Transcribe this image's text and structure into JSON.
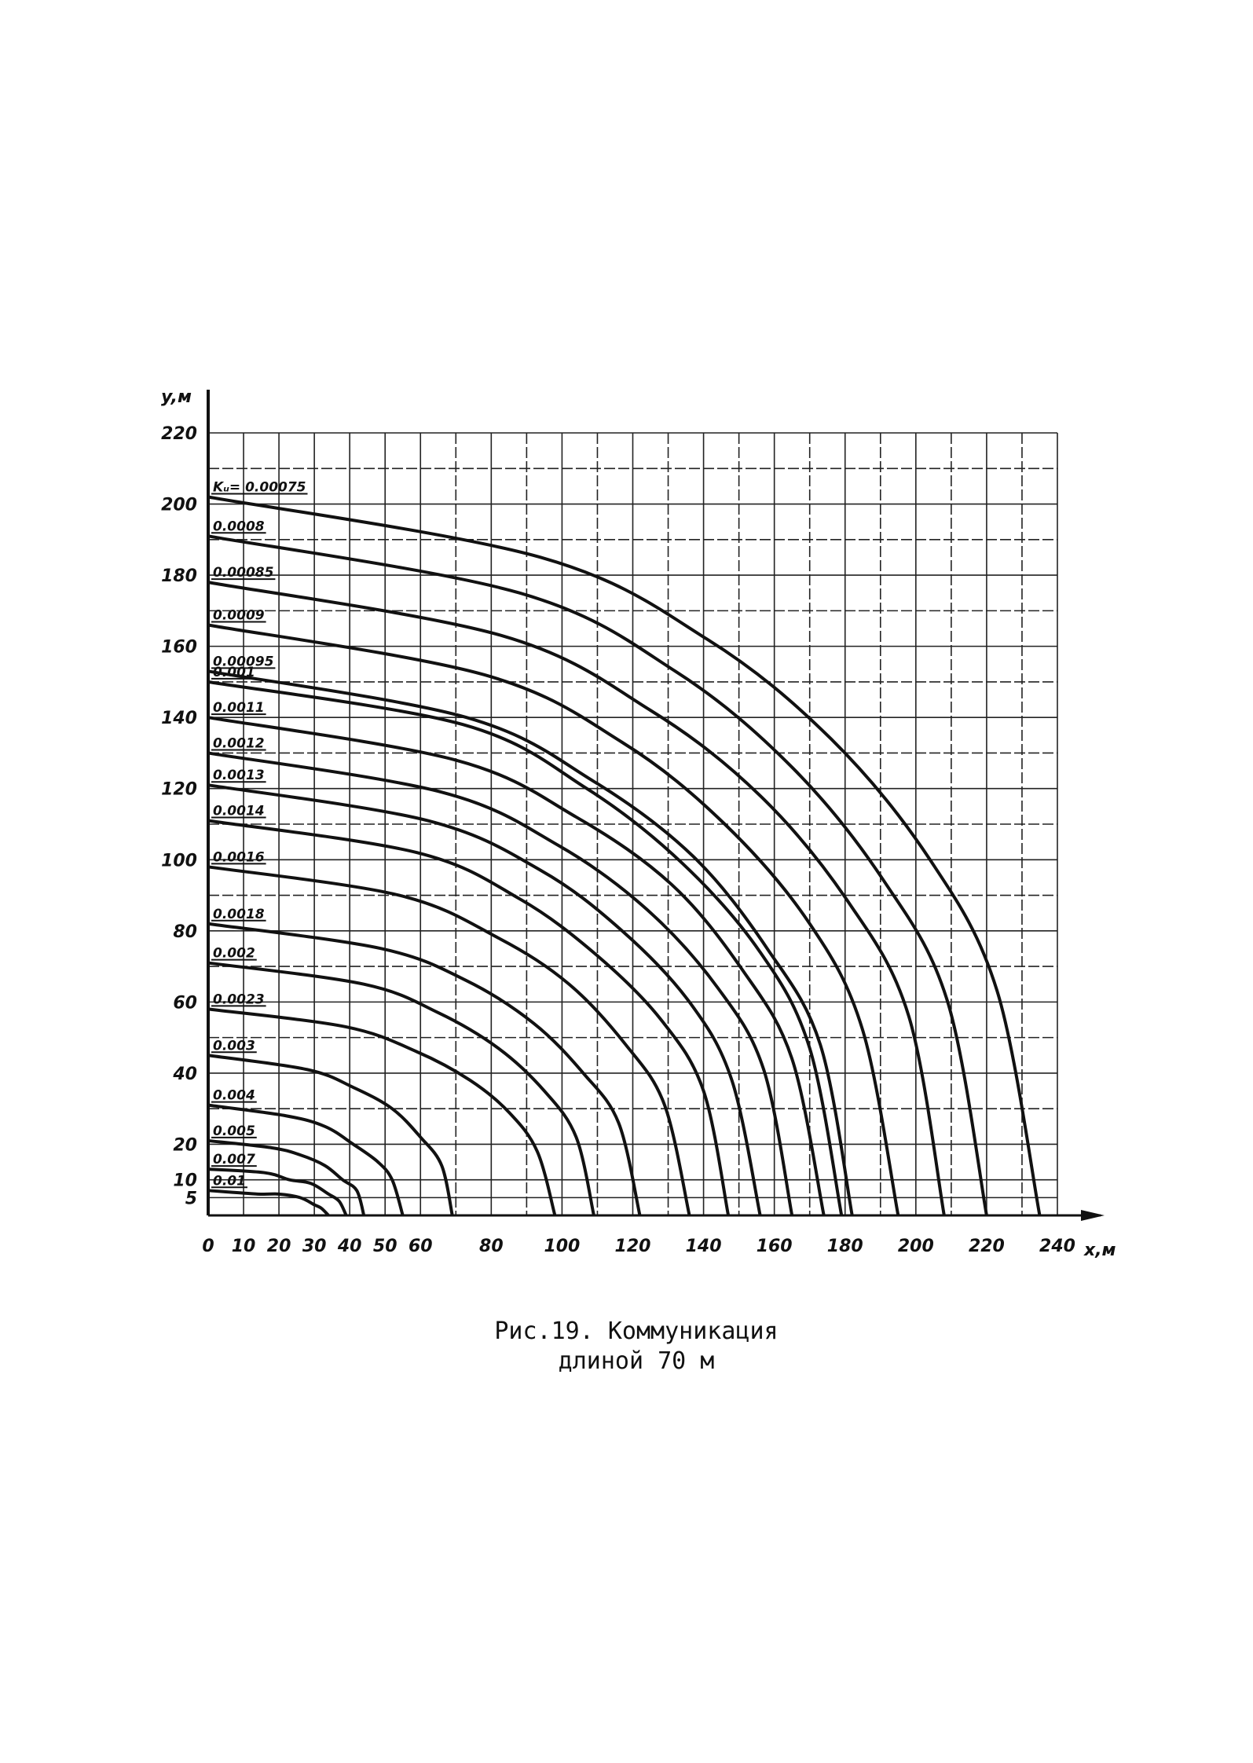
{
  "chart_data": {
    "type": "line",
    "caption": [
      "Рис.19. Коммуникация",
      "длиной 70 м"
    ],
    "x_label": "x,м",
    "y_label": "y,м",
    "xlim": [
      0,
      240
    ],
    "ylim": [
      0,
      220
    ],
    "xticks": [
      0,
      10,
      20,
      30,
      40,
      50,
      60,
      80,
      100,
      120,
      140,
      160,
      180,
      200,
      220,
      240
    ],
    "yticks": [
      5,
      10,
      20,
      40,
      60,
      80,
      100,
      120,
      140,
      160,
      180,
      200,
      220
    ],
    "xminor": [
      70,
      90,
      110,
      130,
      150,
      170,
      190,
      210,
      230
    ],
    "yminor": [
      30,
      50,
      70,
      90,
      110,
      130,
      150,
      170,
      190,
      210
    ],
    "grid": true,
    "color": "#111",
    "series": [
      {
        "name": "Kᵤ= 0.00075",
        "x": [
          0,
          94,
          141,
          176,
          204,
          223,
          235
        ],
        "values": [
          202,
          185,
          162,
          134,
          100,
          63,
          0
        ]
      },
      {
        "name": "0.0008",
        "x": [
          0,
          88,
          132,
          165,
          191,
          209,
          220
        ],
        "values": [
          191,
          175,
          153,
          126,
          94,
          60,
          0
        ]
      },
      {
        "name": "0.00085",
        "x": [
          0,
          83,
          125,
          156,
          181,
          198,
          208
        ],
        "values": [
          178,
          163,
          142,
          118,
          88,
          56,
          0
        ]
      },
      {
        "name": "0.0009",
        "x": [
          0,
          78,
          117,
          146,
          170,
          185,
          195
        ],
        "values": [
          166,
          152,
          133,
          110,
          82,
          52,
          0
        ]
      },
      {
        "name": "0.00095",
        "x": [
          0,
          73,
          109,
          137,
          158,
          173,
          182
        ],
        "values": [
          153,
          140,
          122,
          101,
          75,
          48,
          0
        ]
      },
      {
        "name": "0.001",
        "x": [
          0,
          72,
          107,
          134,
          156,
          170,
          179
        ],
        "values": [
          150,
          138,
          120,
          99,
          74,
          47,
          0
        ]
      },
      {
        "name": "0.0011",
        "x": [
          0,
          70,
          104,
          131,
          151,
          165,
          174
        ],
        "values": [
          140,
          128,
          112,
          93,
          69,
          44,
          0
        ]
      },
      {
        "name": "0.0012",
        "x": [
          0,
          66,
          99,
          124,
          144,
          157,
          165
        ],
        "values": [
          130,
          119,
          104,
          86,
          64,
          41,
          0
        ]
      },
      {
        "name": "0.0013",
        "x": [
          0,
          62,
          94,
          117,
          136,
          148,
          156
        ],
        "values": [
          121,
          111,
          97,
          80,
          60,
          38,
          0
        ]
      },
      {
        "name": "0.0014",
        "x": [
          0,
          59,
          88,
          110,
          128,
          140,
          147
        ],
        "values": [
          111,
          102,
          89,
          73,
          55,
          35,
          0
        ]
      },
      {
        "name": "0.0016",
        "x": [
          0,
          54,
          82,
          102,
          118,
          129,
          136
        ],
        "values": [
          98,
          90,
          78,
          65,
          48,
          31,
          0
        ]
      },
      {
        "name": "0.0018",
        "x": [
          0,
          49,
          73,
          92,
          106,
          116,
          122
        ],
        "values": [
          82,
          75,
          66,
          54,
          40,
          26,
          0
        ]
      },
      {
        "name": "0.002",
        "x": [
          0,
          44,
          65,
          82,
          95,
          104,
          109
        ],
        "values": [
          71,
          65,
          57,
          47,
          35,
          22,
          0
        ]
      },
      {
        "name": "0.0023",
        "x": [
          0,
          39,
          59,
          74,
          85,
          93,
          98
        ],
        "values": [
          58,
          53,
          46,
          38,
          29,
          18,
          0
        ]
      },
      {
        "name": "0.003",
        "x": [
          0,
          28,
          41,
          52,
          60,
          66,
          69
        ],
        "values": [
          45,
          41,
          36,
          30,
          22,
          14,
          0
        ]
      },
      {
        "name": "0.004",
        "x": [
          0,
          22,
          33,
          41,
          48,
          52,
          55
        ],
        "values": [
          31,
          28,
          25,
          20,
          15,
          10,
          0
        ]
      },
      {
        "name": "0.005",
        "x": [
          0,
          18,
          26,
          33,
          38,
          42,
          44
        ],
        "values": [
          21,
          19,
          17,
          14,
          10,
          7,
          0
        ]
      },
      {
        "name": "0.007",
        "x": [
          0,
          16,
          23,
          29,
          34,
          37,
          39
        ],
        "values": [
          13,
          12,
          10,
          9,
          6,
          4,
          0
        ]
      },
      {
        "name": "0.01",
        "x": [
          0,
          14,
          20,
          26,
          30,
          32,
          34
        ],
        "values": [
          7,
          6,
          6,
          5,
          3,
          2,
          0
        ]
      }
    ]
  }
}
